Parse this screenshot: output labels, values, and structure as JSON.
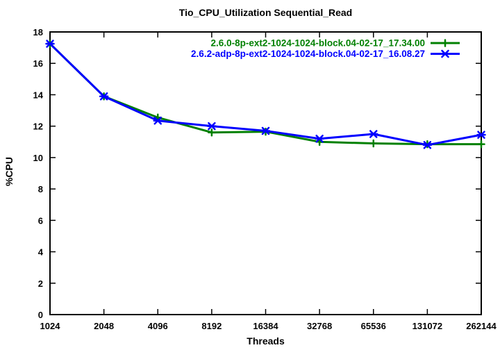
{
  "chart_data": {
    "type": "line",
    "title": "Tio_CPU_Utilization Sequential_Read",
    "xlabel": "Threads",
    "ylabel": "%CPU",
    "x_scale": "log2",
    "grid": false,
    "legend_position": "top-right-inside",
    "background_color": "#ffffff",
    "axis_color": "#000000",
    "categories": [
      "1024",
      "2048",
      "4096",
      "8192",
      "16384",
      "32768",
      "65536",
      "131072",
      "262144"
    ],
    "y_ticks": [
      0,
      2,
      4,
      6,
      8,
      10,
      12,
      14,
      16,
      18
    ],
    "ylim": [
      0,
      18
    ],
    "series": [
      {
        "name": "2.6.0-8p-ext2-1024-1024-block.04-02-17_17.34.00",
        "color": "#008000",
        "marker": "plus",
        "values": [
          17.25,
          13.9,
          12.55,
          11.6,
          11.65,
          11.0,
          10.9,
          10.85,
          10.85
        ]
      },
      {
        "name": "2.6.2-adp-8p-ext2-1024-1024-block.04-02-17_16.08.27",
        "color": "#0000ff",
        "marker": "star",
        "values": [
          17.25,
          13.9,
          12.35,
          12.0,
          11.7,
          11.2,
          11.5,
          10.8,
          11.45
        ]
      }
    ]
  }
}
